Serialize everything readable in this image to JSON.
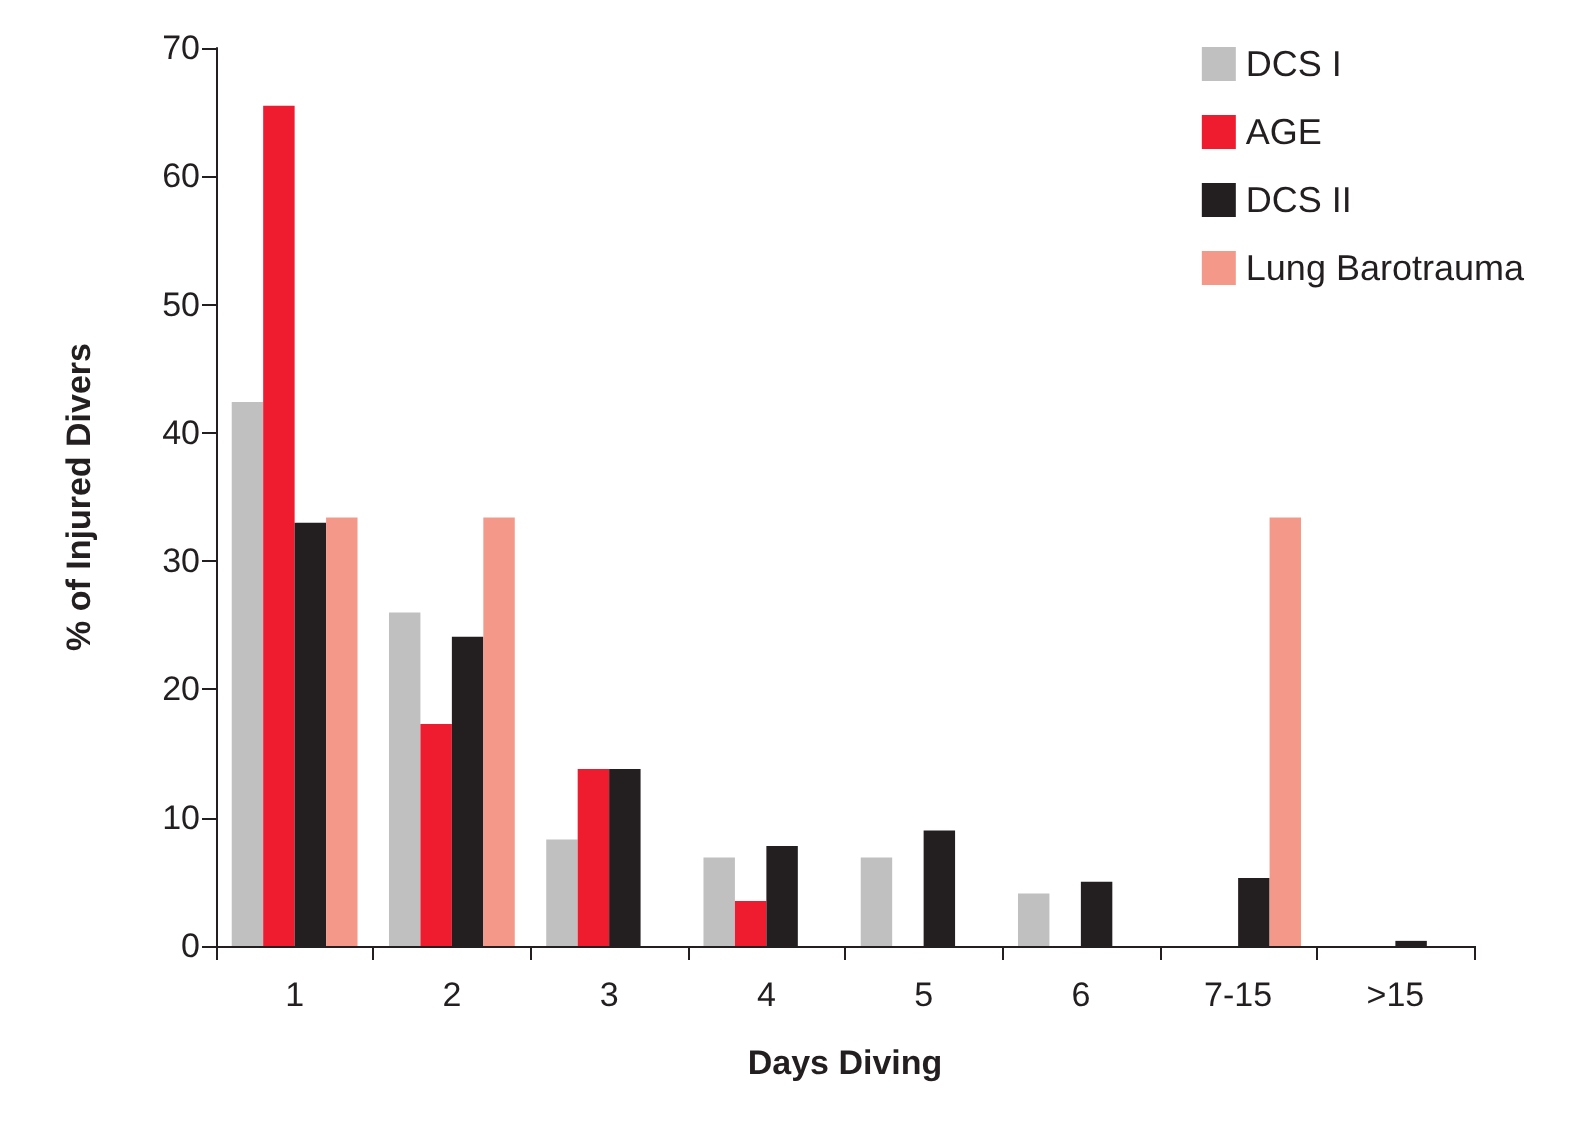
{
  "chart_data": {
    "type": "bar",
    "xlabel": "Days Diving",
    "ylabel": "% of Injured Divers",
    "categories": [
      "1",
      "2",
      "3",
      "4",
      "5",
      "6",
      "7-15",
      ">15"
    ],
    "series": [
      {
        "name": "DCS I",
        "color": "#c0c0c0",
        "values": [
          42.4,
          26.0,
          8.3,
          6.9,
          6.9,
          4.1,
          0,
          0
        ]
      },
      {
        "name": "AGE",
        "color": "#ee1c2e",
        "values": [
          65.5,
          17.3,
          13.8,
          3.5,
          0,
          0,
          0,
          0
        ]
      },
      {
        "name": "DCS II",
        "color": "#231f20",
        "values": [
          33.0,
          24.1,
          13.8,
          7.8,
          9.0,
          5.0,
          5.3,
          0.4
        ]
      },
      {
        "name": "Lung Barotrauma",
        "color": "#f4998a",
        "values": [
          33.4,
          33.4,
          0,
          0,
          0,
          0,
          33.4,
          0
        ]
      }
    ],
    "ylim": [
      0,
      70
    ],
    "yticks": [
      0,
      10,
      20,
      30,
      40,
      50,
      60,
      70
    ],
    "grid": false,
    "legend": "top right"
  }
}
